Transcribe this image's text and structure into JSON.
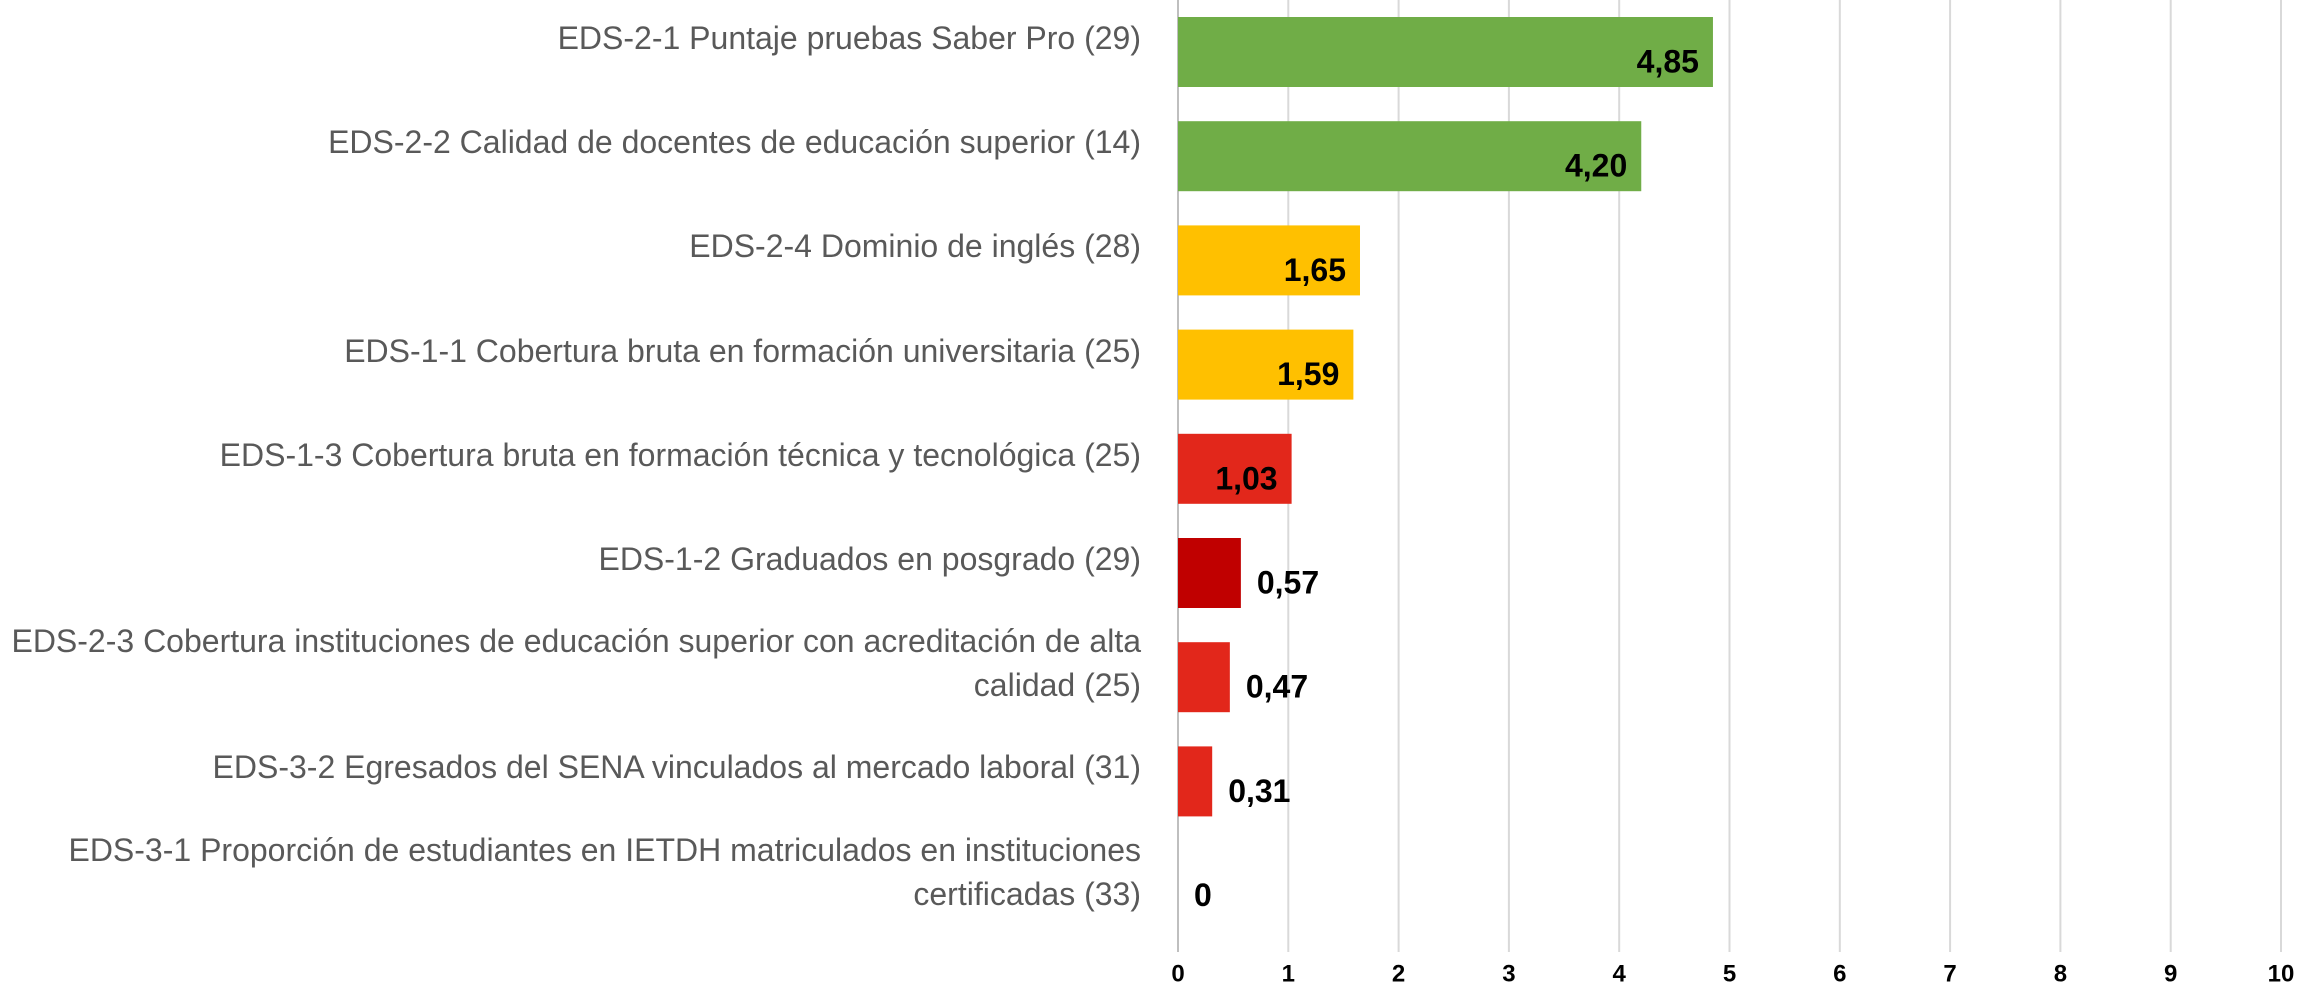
{
  "chart_data": {
    "type": "bar",
    "orientation": "horizontal",
    "categories": [
      "EDS-2-1 Puntaje pruebas Saber Pro (29)",
      "EDS-2-2 Calidad de docentes de educación superior (14)",
      "EDS-2-4 Dominio de inglés (28)",
      "EDS-1-1 Cobertura bruta en formación universitaria (25)",
      "EDS-1-3 Cobertura bruta en formación técnica y tecnológica (25)",
      "EDS-1-2 Graduados en posgrado (29)",
      "EDS-2-3 Cobertura instituciones de educación superior con acreditación de alta calidad (25)",
      "EDS-3-2 Egresados del SENA vinculados al mercado laboral (31)",
      "EDS-3-1 Proporción de estudiantes en IETDH matriculados en instituciones certificadas (33)"
    ],
    "values": [
      4.85,
      4.2,
      1.65,
      1.59,
      1.03,
      0.57,
      0.47,
      0.31,
      0
    ],
    "value_labels": [
      "4,85",
      "4,20",
      "1,65",
      "1,59",
      "1,03",
      "0,57",
      "0,47",
      "0,31",
      "0"
    ],
    "colors": [
      "#70ad47",
      "#70ad47",
      "#ffc000",
      "#ffc000",
      "#e2271b",
      "#c00000",
      "#e2271b",
      "#e2271b",
      "#e2271b"
    ],
    "xlim": [
      0,
      10
    ],
    "xticks": [
      0,
      1,
      2,
      3,
      4,
      5,
      6,
      7,
      8,
      9,
      10
    ],
    "grid": true
  }
}
